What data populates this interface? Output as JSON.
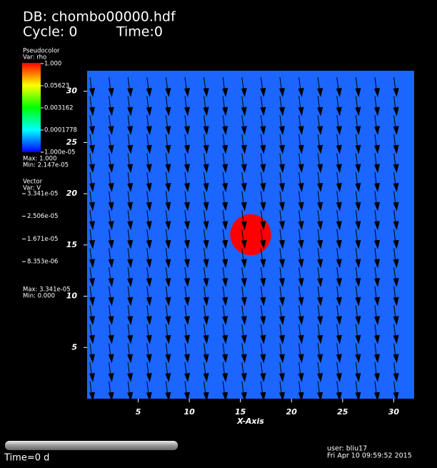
{
  "header": {
    "db": "DB: chombo00000.hdf",
    "cycle": "Cycle: 0",
    "time": "Time:0"
  },
  "pseudocolor_legend": {
    "title": "Pseudocolor",
    "var": "Var: rho",
    "labels": [
      "1.000",
      "0.05623",
      "0.003162",
      "0.0001778",
      "1.000e-05"
    ],
    "max": "Max: 1.000",
    "min": "Min: 2.147e-05"
  },
  "vector_legend": {
    "title": "Vector",
    "var": "Var: V",
    "labels": [
      "3.341e-05",
      "2.506e-05",
      "1.671e-05",
      "8.353e-06"
    ],
    "max": "Max: 3.341e-05",
    "min": "Min: 0.000"
  },
  "chart_data": {
    "type": "vector",
    "xlabel": "X-Axis",
    "xlim": [
      0,
      32
    ],
    "ylim": [
      0,
      32
    ],
    "xticks": [
      5,
      10,
      15,
      20,
      25,
      30
    ],
    "yticks": [
      5,
      10,
      15,
      20,
      25,
      30
    ],
    "background": "#1a66ff",
    "blob": {
      "x": 16,
      "y": 16,
      "r": 2,
      "color": "#ff0000"
    }
  },
  "footer": {
    "time": "Time=0 d",
    "user": "user: bliu17",
    "date": "Fri Apr 10 09:59:52 2015"
  }
}
